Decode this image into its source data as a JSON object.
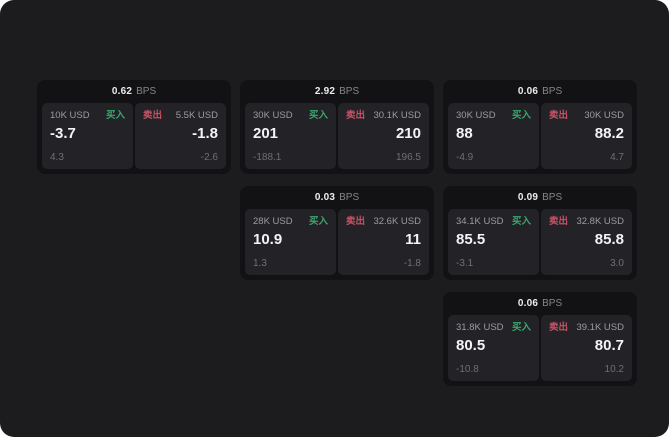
{
  "labels": {
    "bps_unit": "BPS",
    "buy": "买入",
    "sell": "卖出"
  },
  "colors": {
    "canvas_bg": "#1c1c1e",
    "card_bg": "#121214",
    "panel_bg": "#232327",
    "buy_green": "#3aa76d",
    "sell_red": "#c95265"
  },
  "cards": [
    {
      "bps": "0.62",
      "grid": {
        "row": 1,
        "col": 1
      },
      "buy": {
        "amount": "10K USD",
        "price": "-3.7",
        "delta": "4.3"
      },
      "sell": {
        "amount": "5.5K USD",
        "price": "-1.8",
        "delta": "-2.6"
      }
    },
    {
      "bps": "2.92",
      "grid": {
        "row": 1,
        "col": 2
      },
      "buy": {
        "amount": "30K USD",
        "price": "201",
        "delta": "-188.1"
      },
      "sell": {
        "amount": "30.1K USD",
        "price": "210",
        "delta": "196.5"
      }
    },
    {
      "bps": "0.06",
      "grid": {
        "row": 1,
        "col": 3
      },
      "buy": {
        "amount": "30K USD",
        "price": "88",
        "delta": "-4.9"
      },
      "sell": {
        "amount": "30K USD",
        "price": "88.2",
        "delta": "4.7"
      }
    },
    {
      "bps": "0.03",
      "grid": {
        "row": 2,
        "col": 2
      },
      "buy": {
        "amount": "28K USD",
        "price": "10.9",
        "delta": "1.3"
      },
      "sell": {
        "amount": "32.6K USD",
        "price": "11",
        "delta": "-1.8"
      }
    },
    {
      "bps": "0.09",
      "grid": {
        "row": 2,
        "col": 3
      },
      "buy": {
        "amount": "34.1K USD",
        "price": "85.5",
        "delta": "-3.1"
      },
      "sell": {
        "amount": "32.8K USD",
        "price": "85.8",
        "delta": "3.0"
      }
    },
    {
      "bps": "0.06",
      "grid": {
        "row": 3,
        "col": 3
      },
      "buy": {
        "amount": "31.8K USD",
        "price": "80.5",
        "delta": "-10.8"
      },
      "sell": {
        "amount": "39.1K USD",
        "price": "80.7",
        "delta": "10.2"
      }
    }
  ]
}
